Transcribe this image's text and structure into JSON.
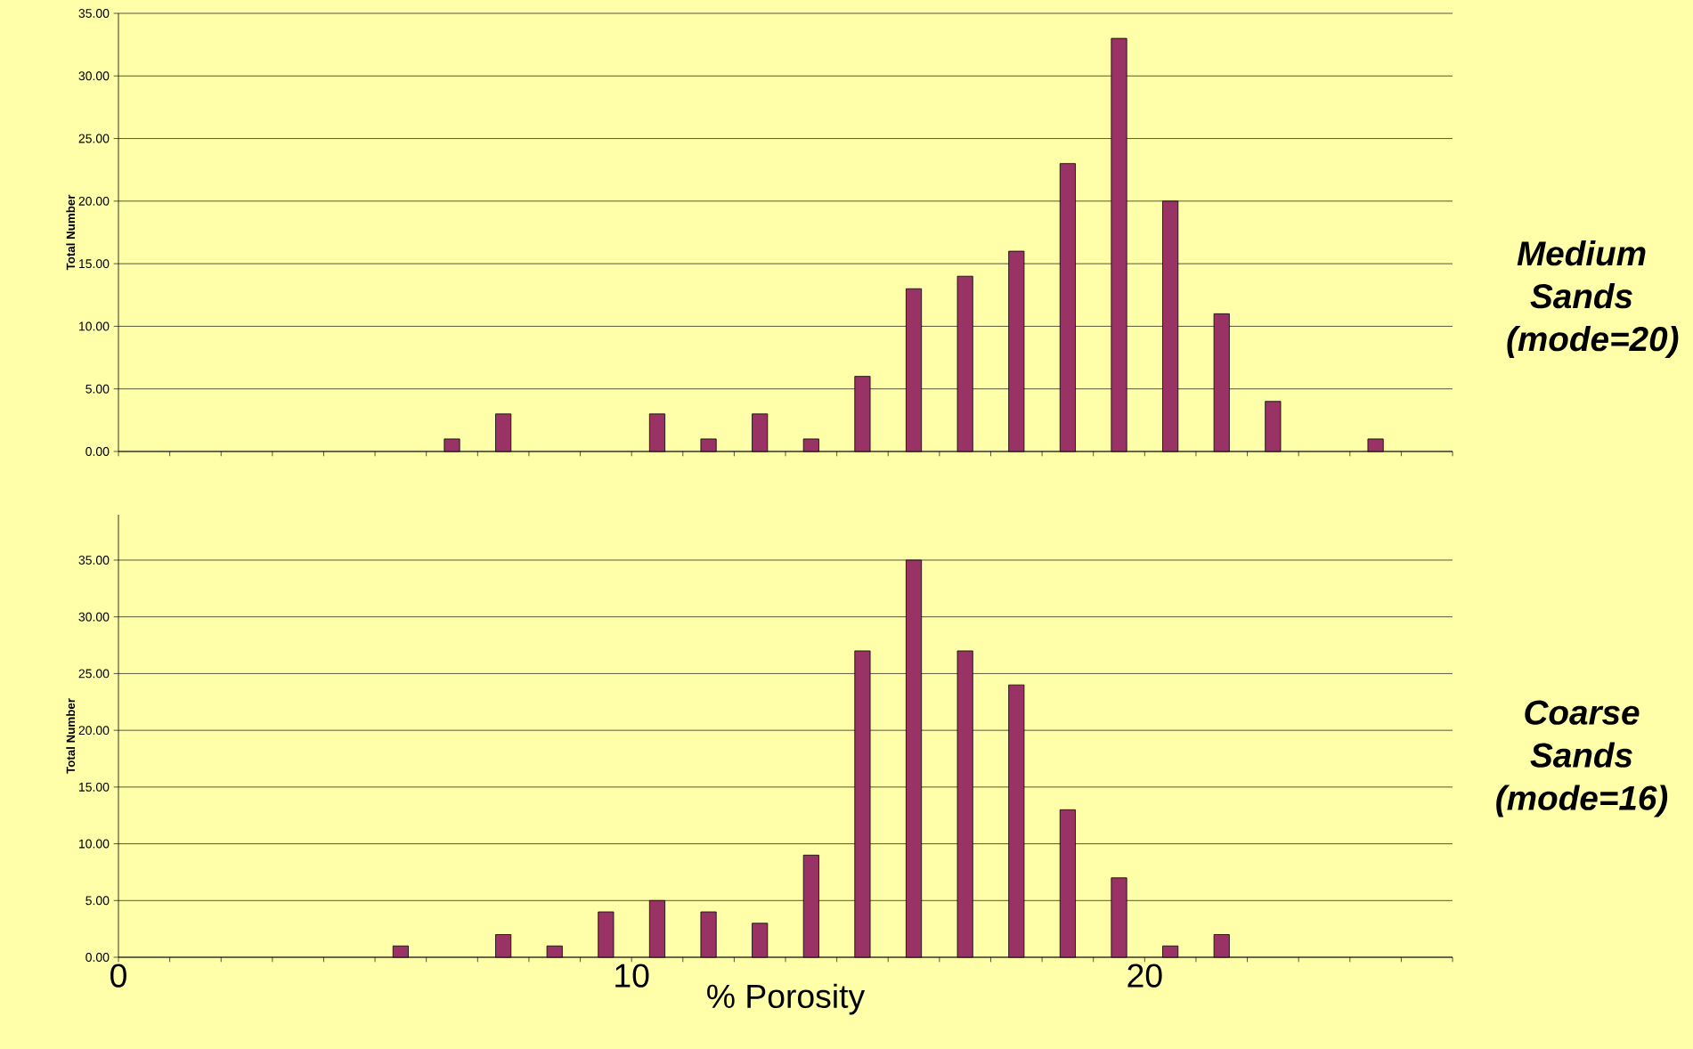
{
  "chart_data": [
    {
      "type": "bar",
      "ylabel": "Total Number",
      "annotations": [
        "**Medium Sands (mode=20)**"
      ],
      "x": [
        6.5,
        7.5,
        10.5,
        11.5,
        12.5,
        13.5,
        14.5,
        15.5,
        16.5,
        17.5,
        18.5,
        19.5,
        20.5,
        21.5,
        22.5,
        24.5
      ],
      "values": [
        1,
        3,
        3,
        1,
        3,
        1,
        6,
        13,
        14,
        16,
        23,
        33,
        20,
        11,
        4,
        1
      ],
      "color": "#993366",
      "xlim": [
        0,
        26
      ],
      "xticks": [
        {
          "value": 0,
          "label": null
        },
        {
          "value": 1,
          "label": null
        },
        {
          "value": 2,
          "label": null
        },
        {
          "value": 3,
          "label": null
        },
        {
          "value": 4,
          "label": null
        },
        {
          "value": 5,
          "label": null
        },
        {
          "value": 6,
          "label": null
        },
        {
          "value": 7,
          "label": null
        },
        {
          "value": 8,
          "label": null
        },
        {
          "value": 9,
          "label": null
        },
        {
          "value": 10,
          "label": null
        },
        {
          "value": 11,
          "label": null
        },
        {
          "value": 12,
          "label": null
        },
        {
          "value": 13,
          "label": null
        },
        {
          "value": 14,
          "label": null
        },
        {
          "value": 15,
          "label": null
        },
        {
          "value": 16,
          "label": null
        },
        {
          "value": 17,
          "label": null
        },
        {
          "value": 18,
          "label": null
        },
        {
          "value": 19,
          "label": null
        },
        {
          "value": 20,
          "label": null
        },
        {
          "value": 21,
          "label": null
        },
        {
          "value": 22,
          "label": null
        },
        {
          "value": 23,
          "label": null
        },
        {
          "value": 24,
          "label": null
        },
        {
          "value": 25,
          "label": null
        },
        {
          "value": 26,
          "label": null
        }
      ],
      "ylim": [
        0,
        35
      ],
      "yticks": [
        {
          "value": 0,
          "label": "0.00"
        },
        {
          "value": 5,
          "label": "5.00"
        },
        {
          "value": 10,
          "label": "10.00"
        },
        {
          "value": 15,
          "label": "15.00"
        },
        {
          "value": 20,
          "label": "20.00"
        },
        {
          "value": 25,
          "label": "25.00"
        },
        {
          "value": 30,
          "label": "30.00"
        },
        {
          "value": 35,
          "label": "35.00"
        }
      ],
      "grid": "y",
      "tick_labels": "y"
    },
    {
      "type": "bar",
      "ylabel": "Total Number",
      "xlabel": "% Porosity",
      "annotations": [
        "**Coarse Sands (mode=16)**"
      ],
      "x": [
        5.5,
        7.5,
        8.5,
        9.5,
        10.5,
        11.5,
        12.5,
        13.5,
        14.5,
        15.5,
        16.5,
        17.5,
        18.5,
        19.5,
        20.5,
        21.5
      ],
      "values": [
        1,
        2,
        1,
        4,
        5,
        4,
        3,
        9,
        27,
        35,
        27,
        24,
        13,
        7,
        1,
        2
      ],
      "color": "#993366",
      "xlim": [
        0,
        26
      ],
      "xticks": [
        {
          "value": 0,
          "label": "0"
        },
        {
          "value": 1,
          "label": null
        },
        {
          "value": 2,
          "label": null
        },
        {
          "value": 3,
          "label": null
        },
        {
          "value": 4,
          "label": null
        },
        {
          "value": 5,
          "label": null
        },
        {
          "value": 6,
          "label": null
        },
        {
          "value": 7,
          "label": null
        },
        {
          "value": 8,
          "label": null
        },
        {
          "value": 9,
          "label": null
        },
        {
          "value": 10,
          "label": "10"
        },
        {
          "value": 11,
          "label": null
        },
        {
          "value": 12,
          "label": null
        },
        {
          "value": 13,
          "label": null
        },
        {
          "value": 14,
          "label": null
        },
        {
          "value": 15,
          "label": null
        },
        {
          "value": 16,
          "label": null
        },
        {
          "value": 17,
          "label": null
        },
        {
          "value": 18,
          "label": null
        },
        {
          "value": 19,
          "label": null
        },
        {
          "value": 20,
          "label": "20"
        },
        {
          "value": 21,
          "label": null
        },
        {
          "value": 22,
          "label": null
        },
        {
          "value": 23,
          "label": null
        },
        {
          "value": 24,
          "label": null
        },
        {
          "value": 25,
          "label": null
        },
        {
          "value": 26,
          "label": null
        }
      ],
      "ylim": [
        0,
        39
      ],
      "yticks": [
        {
          "value": 0,
          "label": "0.00"
        },
        {
          "value": 5,
          "label": "5.00"
        },
        {
          "value": 10,
          "label": "10.00"
        },
        {
          "value": 15,
          "label": "15.00"
        },
        {
          "value": 20,
          "label": "20.00"
        },
        {
          "value": 25,
          "label": "25.00"
        },
        {
          "value": 30,
          "label": "30.00"
        },
        {
          "value": 35,
          "label": "35.00"
        }
      ],
      "grid": "y"
    }
  ]
}
